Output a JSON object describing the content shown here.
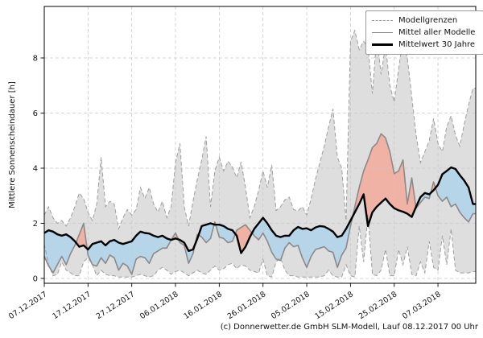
{
  "footer": {
    "credit": "(c) Donnerwetter.de GmbH SLM-Modell, Lauf 08.12.2017 00 Uhr"
  },
  "chart_data": {
    "type": "area",
    "title": "",
    "xlabel": "",
    "ylabel": "Mittlere Sonnenscheindauer [h]",
    "ylim": [
      -0.2,
      9.9
    ],
    "grid": true,
    "y_ticks": [
      0,
      2,
      4,
      6,
      8
    ],
    "x_tick_days": [
      0,
      10,
      20,
      30,
      40,
      50,
      60,
      70,
      80,
      90
    ],
    "x_tick_labels": [
      "07.12.2017",
      "17.12.2017",
      "27.12.2017",
      "06.01.2018",
      "16.01.2018",
      "26.01.2018",
      "05.02.2018",
      "15.02.2018",
      "25.02.2018",
      "07.03.2018"
    ],
    "days_total": 99,
    "legend": {
      "position": "top-right",
      "entries": [
        {
          "label": "Modellgrenzen",
          "style": "dashed-gray"
        },
        {
          "label": "Mittel aller Modelle",
          "style": "solid-gray"
        },
        {
          "label": "Mittelwert 30 Jahre",
          "style": "solid-black-thick"
        }
      ]
    },
    "colors": {
      "band": "#dedede",
      "boundary": "#9e9e9e",
      "above_normal": "#f0b2a4",
      "below_normal": "#b7d5e9",
      "model_mean_line": "#8a8a8a",
      "climate_mean_line": "#000000",
      "grid": "#c9c9c9",
      "frame": "#000000"
    },
    "series": [
      {
        "name": "Modellgrenzen (oben)",
        "role": "upper",
        "values": [
          2.3,
          2.6,
          2.2,
          2.0,
          2.1,
          1.9,
          2.2,
          2.6,
          3.1,
          2.9,
          2.4,
          2.1,
          2.7,
          4.4,
          2.6,
          2.8,
          2.7,
          1.8,
          2.2,
          2.5,
          2.3,
          2.5,
          3.3,
          2.9,
          3.3,
          2.7,
          2.4,
          2.8,
          2.2,
          2.6,
          4.2,
          4.9,
          2.6,
          1.9,
          2.8,
          3.6,
          4.3,
          5.15,
          2.6,
          3.9,
          4.4,
          3.9,
          4.25,
          4.05,
          3.65,
          4.23,
          3.3,
          2.2,
          2.6,
          3.2,
          3.9,
          3.3,
          4.12,
          2.46,
          2.6,
          2.85,
          2.95,
          2.5,
          2.45,
          2.6,
          2.3,
          2.9,
          3.6,
          4.2,
          4.8,
          5.5,
          6.15,
          4.4,
          4.0,
          2.1,
          8.6,
          9.0,
          8.3,
          8.6,
          8.4,
          6.7,
          8.8,
          7.4,
          8.45,
          7.0,
          6.4,
          7.6,
          8.7,
          8.0,
          6.6,
          5.2,
          4.2,
          4.6,
          5.0,
          5.8,
          4.9,
          4.6,
          5.5,
          5.9,
          5.2,
          4.8,
          5.6,
          6.3,
          6.9
        ]
      },
      {
        "name": "Modellgrenzen (unten)",
        "role": "lower",
        "values": [
          1.25,
          0.5,
          0.1,
          0.15,
          0.6,
          0.3,
          0.2,
          0.1,
          0.1,
          0.6,
          0.75,
          0.5,
          0.1,
          0.3,
          0.15,
          0.1,
          0.1,
          0.05,
          0.05,
          0.05,
          0.05,
          0.1,
          0.15,
          0.1,
          0.05,
          0.1,
          0.3,
          0.4,
          0.3,
          0.15,
          0.25,
          0.3,
          0.2,
          0.1,
          0.2,
          0.3,
          0.2,
          0.15,
          0.3,
          0.45,
          0.3,
          0.35,
          0.5,
          0.55,
          0.35,
          0.5,
          0.45,
          0.3,
          0.25,
          0.2,
          0.7,
          0.1,
          0.05,
          0.6,
          0.75,
          0.3,
          0.1,
          0.1,
          0.05,
          0.05,
          0.05,
          0.05,
          0.05,
          0.05,
          0.1,
          0.3,
          0.1,
          0.05,
          0.05,
          0.5,
          0.1,
          0.05,
          1.9,
          0.6,
          2.3,
          0.15,
          0.1,
          0.3,
          1.05,
          0.1,
          0.1,
          1.05,
          0.5,
          1.15,
          0.15,
          0.1,
          0.6,
          0.2,
          1.35,
          0.4,
          0.3,
          1.55,
          0.5,
          1.8,
          0.3,
          0.2,
          0.2,
          0.2,
          0.25
        ]
      },
      {
        "name": "Mittel aller Modelle",
        "role": "model_mean",
        "values": [
          0.8,
          0.45,
          0.2,
          0.5,
          0.8,
          0.5,
          0.9,
          1.2,
          1.6,
          2.0,
          0.85,
          0.5,
          0.45,
          0.75,
          0.55,
          0.85,
          0.75,
          0.3,
          0.55,
          0.45,
          0.15,
          0.7,
          0.8,
          0.75,
          0.55,
          0.9,
          1.0,
          1.1,
          1.1,
          1.4,
          1.65,
          1.3,
          1.2,
          0.55,
          0.9,
          1.6,
          1.5,
          1.3,
          1.45,
          2.05,
          1.5,
          1.45,
          1.3,
          1.35,
          1.75,
          1.85,
          1.95,
          1.75,
          1.55,
          1.4,
          1.65,
          1.35,
          0.95,
          0.7,
          0.65,
          1.1,
          1.3,
          1.15,
          1.2,
          0.75,
          0.4,
          0.8,
          1.05,
          1.1,
          1.15,
          1.0,
          0.95,
          0.4,
          0.85,
          1.1,
          1.9,
          2.6,
          3.3,
          3.9,
          4.3,
          4.75,
          4.9,
          5.25,
          5.1,
          4.6,
          3.8,
          3.9,
          4.3,
          2.7,
          3.65,
          2.55,
          2.75,
          2.95,
          2.9,
          3.5,
          3.0,
          2.8,
          2.95,
          2.6,
          2.7,
          2.4,
          2.2,
          2.05,
          2.35
        ]
      },
      {
        "name": "Mittelwert 30 Jahre",
        "role": "climate_mean",
        "values": [
          1.65,
          1.75,
          1.7,
          1.6,
          1.55,
          1.6,
          1.5,
          1.35,
          1.15,
          1.2,
          1.05,
          1.25,
          1.3,
          1.35,
          1.2,
          1.35,
          1.4,
          1.3,
          1.25,
          1.3,
          1.35,
          1.55,
          1.7,
          1.65,
          1.63,
          1.55,
          1.5,
          1.55,
          1.45,
          1.4,
          1.45,
          1.4,
          1.3,
          1.0,
          1.05,
          1.45,
          1.9,
          1.95,
          2.0,
          1.95,
          1.95,
          1.9,
          1.8,
          1.75,
          1.55,
          0.92,
          1.15,
          1.5,
          1.8,
          2.0,
          2.2,
          2.0,
          1.75,
          1.55,
          1.5,
          1.55,
          1.55,
          1.75,
          1.87,
          1.8,
          1.82,
          1.75,
          1.85,
          1.9,
          1.88,
          1.8,
          1.7,
          1.5,
          1.55,
          1.8,
          2.1,
          2.4,
          2.7,
          3.05,
          1.9,
          2.4,
          2.6,
          2.75,
          2.9,
          2.7,
          2.55,
          2.47,
          2.42,
          2.35,
          2.23,
          2.6,
          2.95,
          3.1,
          3.05,
          3.2,
          3.4,
          3.78,
          3.9,
          4.03,
          3.97,
          3.75,
          3.55,
          3.3,
          2.7
        ]
      }
    ]
  }
}
